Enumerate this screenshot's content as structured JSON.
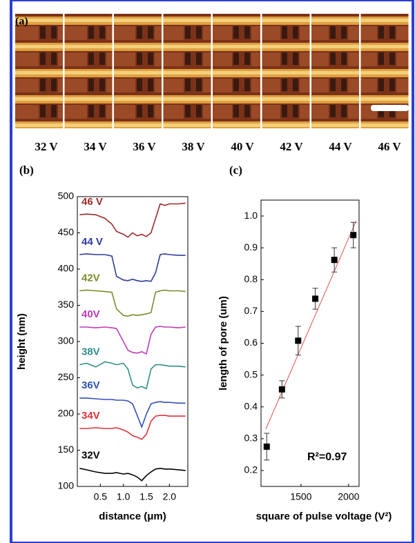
{
  "panel_a": {
    "label": "(a)",
    "voltages": [
      "32 V",
      "34 V",
      "36 V",
      "38 V",
      "40 V",
      "42 V",
      "44 V",
      "46 V"
    ]
  },
  "chart_data": [
    {
      "type": "line",
      "panel_label": "(b)",
      "xlabel": "distance (μm)",
      "ylabel": "height (nm)",
      "x": [
        0.05,
        0.2,
        0.4,
        0.6,
        0.75,
        0.85,
        1.0,
        1.1,
        1.2,
        1.3,
        1.4,
        1.5,
        1.6,
        1.7,
        1.8,
        1.9,
        2.0,
        2.2,
        2.35
      ],
      "series": [
        {
          "name": "46 V",
          "color": "#9b2a2a",
          "values": [
            475,
            476,
            475,
            470,
            462,
            452,
            448,
            444,
            450,
            446,
            448,
            445,
            450,
            470,
            490,
            488,
            490,
            490,
            491
          ]
        },
        {
          "name": "44 V",
          "color": "#2e3a9a",
          "values": [
            420,
            421,
            420,
            420,
            418,
            390,
            385,
            384,
            386,
            384,
            383,
            384,
            383,
            395,
            420,
            421,
            420,
            419,
            419
          ]
        },
        {
          "name": "42V",
          "color": "#7a8a2a",
          "values": [
            370,
            371,
            370,
            369,
            368,
            345,
            336,
            335,
            337,
            336,
            337,
            338,
            340,
            368,
            370,
            371,
            370,
            370,
            369
          ]
        },
        {
          "name": "40V",
          "color": "#c03ab8",
          "values": [
            320,
            320,
            319,
            320,
            319,
            318,
            300,
            288,
            285,
            284,
            286,
            283,
            310,
            320,
            321,
            320,
            320,
            319,
            320
          ]
        },
        {
          "name": "38V",
          "color": "#2f8f8a",
          "values": [
            268,
            270,
            265,
            272,
            270,
            268,
            270,
            262,
            240,
            236,
            238,
            235,
            262,
            268,
            268,
            267,
            266,
            266,
            265
          ]
        },
        {
          "name": "36V",
          "color": "#2f4fb8",
          "values": [
            222,
            222,
            221,
            220,
            220,
            219,
            219,
            218,
            214,
            198,
            182,
            200,
            214,
            216,
            217,
            216,
            216,
            215,
            215
          ]
        },
        {
          "name": "34V",
          "color": "#e0303a",
          "values": [
            180,
            180,
            181,
            180,
            180,
            181,
            178,
            175,
            170,
            168,
            165,
            172,
            190,
            197,
            198,
            198,
            197,
            197,
            197
          ]
        },
        {
          "name": "32V",
          "color": "#000000",
          "values": [
            125,
            123,
            120,
            118,
            118,
            119,
            117,
            118,
            116,
            113,
            108,
            115,
            120,
            124,
            125,
            124,
            124,
            123,
            122
          ]
        }
      ],
      "xlim": [
        0,
        2.4
      ],
      "ylim": [
        100,
        500
      ],
      "xticks": [
        0.5,
        {
          "value": 1,
          "label": "1.0"
        },
        1.5,
        {
          "value": 2,
          "label": "2.0"
        }
      ],
      "yticks": [
        100,
        150,
        200,
        250,
        300,
        350,
        400,
        450,
        500
      ]
    },
    {
      "type": "scatter",
      "panel_label": "(c)",
      "xlabel": "square of pulse voltage (V²)",
      "ylabel": "length of pore (um)",
      "x": [
        1140,
        1300,
        1470,
        1650,
        1850,
        2050
      ],
      "values": [
        0.275,
        0.455,
        0.608,
        0.74,
        0.862,
        0.94
      ],
      "errors": [
        0.042,
        0.027,
        0.045,
        0.033,
        0.038,
        0.04
      ],
      "color": "#000000",
      "fit": {
        "x": [
          1130,
          2080
        ],
        "y": [
          0.33,
          0.985
        ],
        "color": "#e05050"
      },
      "annotation": "R²=0.97",
      "xlim": [
        1080,
        2110
      ],
      "ylim": [
        0.15,
        1.05
      ],
      "xticks": [
        1500,
        2000
      ],
      "yticks": [
        0.2,
        0.3,
        0.4,
        0.5,
        0.6,
        0.7,
        0.8,
        0.9,
        {
          "value": 1,
          "label": "1.0"
        }
      ]
    }
  ]
}
